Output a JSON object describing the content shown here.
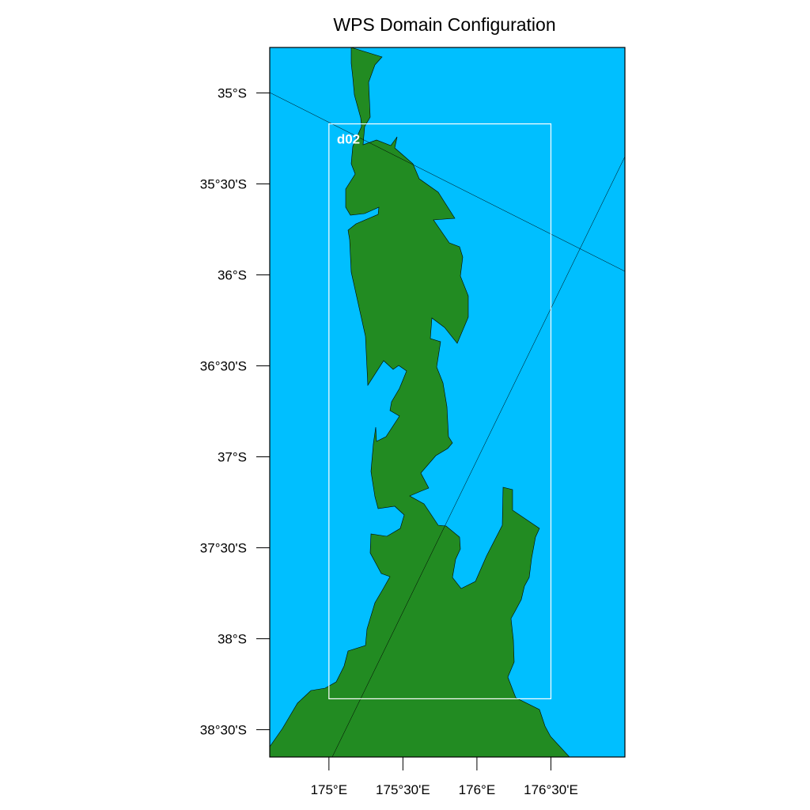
{
  "title": "WPS Domain Configuration",
  "colors": {
    "ocean": "#00BFFF",
    "land": "#228B22",
    "domain_box": "#FFFFFF",
    "frame": "#000000"
  },
  "map": {
    "lon_range": [
      174.6,
      177.0
    ],
    "lat_range": [
      -38.65,
      -34.75
    ],
    "y_tick_labels": [
      "35°S",
      "35°30'S",
      "36°S",
      "36°30'S",
      "37°S",
      "37°30'S",
      "38°S",
      "38°30'S"
    ],
    "y_tick_values": [
      -35.0,
      -35.5,
      -36.0,
      -36.5,
      -37.0,
      -37.5,
      -38.0,
      -38.5
    ],
    "x_tick_labels": [
      "175°E",
      "175°30'E",
      "176°E",
      "176°30'E"
    ],
    "x_tick_values": [
      175.0,
      175.5,
      176.0,
      176.5
    ]
  },
  "nested_domain": {
    "label": "d02",
    "lon_min": 175.0,
    "lon_max": 176.5,
    "lat_min": -38.33,
    "lat_max": -35.17
  }
}
